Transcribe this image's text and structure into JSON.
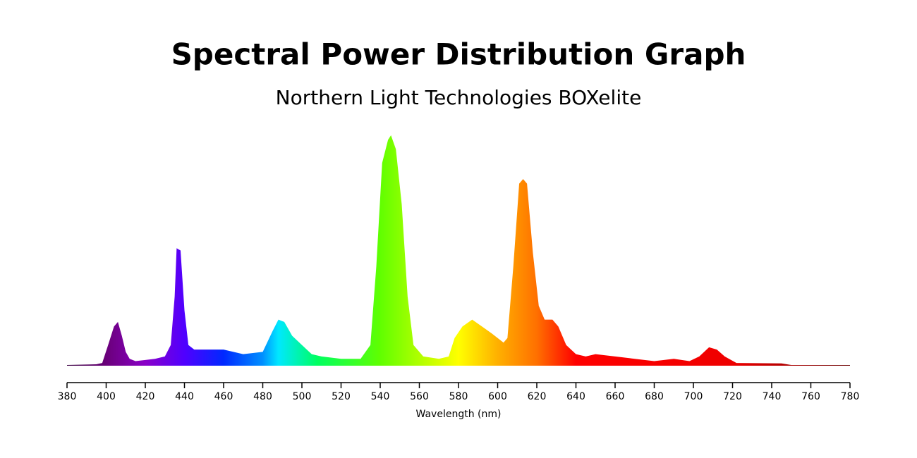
{
  "chart_data": {
    "type": "area",
    "title": "Spectral Power Distribution Graph",
    "subtitle": "Northern Light Technologies BOXelite",
    "xlabel": "Wavelength (nm)",
    "xlim": [
      380,
      780
    ],
    "xticks": [
      380,
      400,
      420,
      440,
      460,
      480,
      500,
      520,
      540,
      560,
      580,
      600,
      620,
      640,
      660,
      680,
      700,
      720,
      740,
      760,
      780
    ],
    "x": [
      380,
      395,
      398,
      401,
      404,
      406,
      408,
      410,
      412,
      415,
      425,
      430,
      433,
      435,
      436,
      438,
      440,
      442,
      445,
      460,
      465,
      470,
      480,
      485,
      488,
      491,
      495,
      500,
      505,
      510,
      520,
      530,
      535,
      538,
      541,
      544,
      545.5,
      548,
      551,
      554,
      557,
      562,
      570,
      575,
      578,
      582,
      587,
      592,
      597,
      603,
      605,
      608,
      611,
      613,
      615,
      618,
      621,
      624,
      628,
      631,
      635,
      640,
      645,
      650,
      660,
      670,
      680,
      690,
      698,
      703,
      708,
      712,
      716,
      722,
      745,
      750,
      780
    ],
    "values": [
      0.3,
      0.6,
      1.2,
      9,
      17,
      19,
      13,
      6,
      3,
      2,
      3,
      4,
      9,
      30,
      51,
      50,
      24,
      9,
      7,
      7,
      6,
      5,
      6,
      15,
      20,
      19,
      13,
      9,
      5,
      4,
      3,
      3,
      9,
      43,
      88,
      98,
      100,
      94,
      70,
      30,
      9,
      4,
      3,
      4,
      12,
      17,
      20,
      17,
      14,
      10,
      12,
      43,
      79,
      81,
      79,
      49,
      26,
      20,
      20,
      17,
      9,
      5,
      4,
      5,
      4,
      3,
      2,
      3,
      2,
      4,
      8,
      7,
      4,
      1.2,
      1,
      0.3,
      0.3
    ]
  }
}
